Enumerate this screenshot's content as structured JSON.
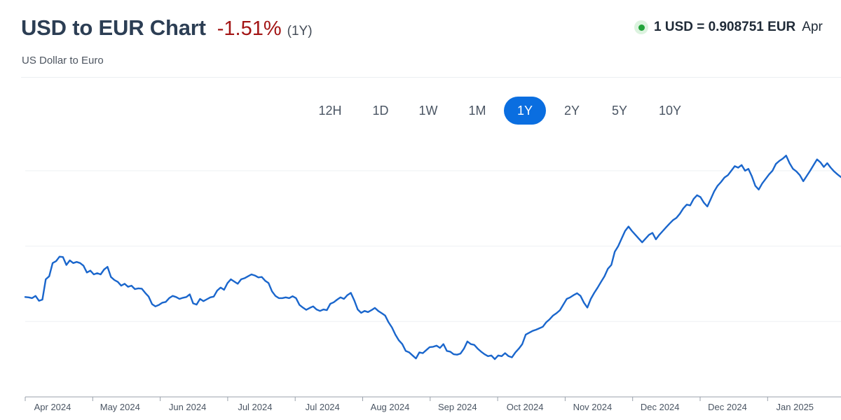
{
  "header": {
    "title": "USD to EUR Chart",
    "change": "-1.51%",
    "period": "(1Y)",
    "subtitle": "US Dollar to Euro",
    "rate_text": "1 USD = 0.908751 EUR",
    "rate_date": "Apr"
  },
  "tabs": [
    {
      "label": "12H",
      "active": false
    },
    {
      "label": "1D",
      "active": false
    },
    {
      "label": "1W",
      "active": false
    },
    {
      "label": "1M",
      "active": false
    },
    {
      "label": "1Y",
      "active": true
    },
    {
      "label": "2Y",
      "active": false
    },
    {
      "label": "5Y",
      "active": false
    },
    {
      "label": "10Y",
      "active": false
    }
  ],
  "colors": {
    "line": "#1a66cc",
    "negative": "#a31515",
    "accent": "#0a6ee0",
    "status": "#22a33a"
  },
  "chart_data": {
    "type": "line",
    "title": "",
    "xlabel": "",
    "ylabel": "",
    "grid": "horizontal",
    "ylim": [
      0.9,
      0.97
    ],
    "x_tick_labels": [
      "Apr 2024",
      "May 2024",
      "Jun 2024",
      "Jul 2024",
      "Jul 2024",
      "Aug 2024",
      "Sep 2024",
      "Oct 2024",
      "Nov 2024",
      "Dec 2024",
      "Dec 2024",
      "Jan 2025"
    ],
    "series": [
      {
        "values": [
          0.9265,
          0.9264,
          0.9262,
          0.9268,
          0.9255,
          0.9258,
          0.9312,
          0.932,
          0.9355,
          0.936,
          0.9372,
          0.9371,
          0.935,
          0.9362,
          0.9355,
          0.9358,
          0.9355,
          0.9348,
          0.933,
          0.9335,
          0.9325,
          0.9328,
          0.9325,
          0.9338,
          0.9345,
          0.9318,
          0.931,
          0.9305,
          0.9295,
          0.93,
          0.9292,
          0.9295,
          0.9286,
          0.9288,
          0.9287,
          0.9276,
          0.9266,
          0.9246,
          0.924,
          0.9244,
          0.925,
          0.9252,
          0.9262,
          0.9268,
          0.9265,
          0.926,
          0.9263,
          0.9265,
          0.9272,
          0.9248,
          0.9245,
          0.926,
          0.9254,
          0.9259,
          0.9264,
          0.9266,
          0.9282,
          0.929,
          0.9284,
          0.9302,
          0.9312,
          0.9306,
          0.93,
          0.9312,
          0.9315,
          0.932,
          0.9325,
          0.9322,
          0.9317,
          0.9318,
          0.9308,
          0.9302,
          0.928,
          0.9268,
          0.9262,
          0.9262,
          0.9264,
          0.9262,
          0.9267,
          0.9262,
          0.9244,
          0.9237,
          0.9231,
          0.9236,
          0.924,
          0.9232,
          0.9228,
          0.9232,
          0.923,
          0.9247,
          0.9251,
          0.9258,
          0.9264,
          0.926,
          0.927,
          0.9276,
          0.9256,
          0.9232,
          0.9223,
          0.9228,
          0.9225,
          0.923,
          0.9236,
          0.9228,
          0.9222,
          0.9216,
          0.9198,
          0.9184,
          0.9165,
          0.915,
          0.914,
          0.9122,
          0.9118,
          0.911,
          0.9102,
          0.9118,
          0.9116,
          0.9124,
          0.9132,
          0.9133,
          0.9136,
          0.913,
          0.914,
          0.9122,
          0.912,
          0.9113,
          0.9112,
          0.9115,
          0.9128,
          0.9147,
          0.914,
          0.9138,
          0.9128,
          0.912,
          0.9113,
          0.9108,
          0.911,
          0.91,
          0.911,
          0.9108,
          0.9116,
          0.9108,
          0.9105,
          0.9118,
          0.9128,
          0.914,
          0.9165,
          0.917,
          0.9175,
          0.9178,
          0.9182,
          0.9186,
          0.9198,
          0.9206,
          0.9216,
          0.9222,
          0.923,
          0.9245,
          0.926,
          0.9264,
          0.927,
          0.9275,
          0.9268,
          0.925,
          0.9237,
          0.926,
          0.9276,
          0.929,
          0.9305,
          0.932,
          0.934,
          0.935,
          0.9385,
          0.94,
          0.942,
          0.944,
          0.9452,
          0.944,
          0.943,
          0.942,
          0.941,
          0.942,
          0.943,
          0.9435,
          0.9418,
          0.943,
          0.944,
          0.945,
          0.946,
          0.9469,
          0.9475,
          0.9486,
          0.95,
          0.951,
          0.9508,
          0.9525,
          0.9535,
          0.953,
          0.9515,
          0.9505,
          0.9525,
          0.9545,
          0.956,
          0.957,
          0.9582,
          0.9588,
          0.96,
          0.9612,
          0.9608,
          0.9615,
          0.96,
          0.9605,
          0.9585,
          0.956,
          0.955,
          0.9566,
          0.9578,
          0.959,
          0.96,
          0.9618,
          0.9626,
          0.9632,
          0.964,
          0.962,
          0.9605,
          0.9598,
          0.9588,
          0.9572,
          0.9586,
          0.96,
          0.9615,
          0.963,
          0.9622,
          0.961,
          0.962,
          0.9608,
          0.9598,
          0.959,
          0.9583
        ]
      }
    ]
  }
}
